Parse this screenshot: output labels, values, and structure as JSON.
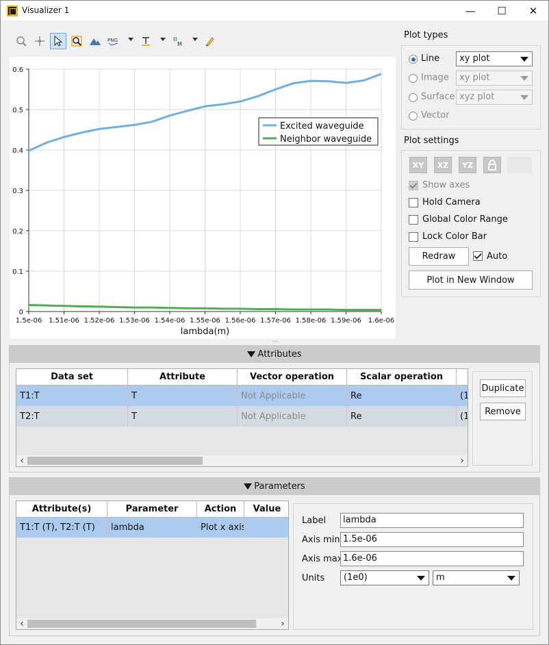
{
  "window": {
    "title": "Visualizer 1"
  },
  "toolbar": {
    "png_label": "PNG"
  },
  "plot_types": {
    "title": "Plot types",
    "options": [
      {
        "label": "Line",
        "combo": "xy plot",
        "selected": true
      },
      {
        "label": "Image",
        "combo": "xy plot",
        "selected": false
      },
      {
        "label": "Surface",
        "combo": "xyz plot",
        "selected": false
      },
      {
        "label": "Vector",
        "selected": false
      }
    ]
  },
  "plot_settings": {
    "title": "Plot settings",
    "axis_buttons": [
      "XY",
      "XZ",
      "YZ"
    ],
    "show_axes": "Show axes",
    "hold_camera": "Hold Camera",
    "global_color_range": "Global Color Range",
    "lock_color_bar": "Lock Color Bar",
    "redraw": "Redraw",
    "auto": "Auto",
    "new_window": "Plot in New Window"
  },
  "attributes": {
    "title": "Attributes",
    "headers": [
      "Data set",
      "Attribute",
      "Vector operation",
      "Scalar operation"
    ],
    "rows": [
      [
        "T1:T",
        "T",
        "Not Applicable",
        "Re",
        "(1"
      ],
      [
        "T2:T",
        "T",
        "Not Applicable",
        "Re",
        "(1"
      ]
    ],
    "duplicate": "Duplicate",
    "remove": "Remove"
  },
  "parameters": {
    "title": "Parameters",
    "headers": [
      "Attribute(s)",
      "Parameter",
      "Action",
      "Value"
    ],
    "rows": [
      [
        "T1:T (T), T2:T (T)",
        "lambda",
        "Plot x axis",
        ""
      ]
    ],
    "label_label": "Label",
    "label_value": "lambda",
    "axis_min_label": "Axis min",
    "axis_min_value": "1.5e-06",
    "axis_max_label": "Axis max",
    "axis_max_value": "1.6e-06",
    "units_label": "Units",
    "units_scale": "(1e0)",
    "units_value": "m"
  },
  "colors": {
    "series1": "#6ab0e8",
    "series2": "#4caf50",
    "selection": "#aacbee"
  },
  "chart_data": {
    "type": "line",
    "xlabel": "lambda(m)",
    "ylabel": "",
    "xlim": [
      1.5e-06,
      1.6e-06
    ],
    "ylim": [
      0,
      0.6
    ],
    "grid": true,
    "legend_position": "top-right",
    "x_tick_labels": [
      "1.5e-06",
      "1.51e-06",
      "1.52e-06",
      "1.53e-06",
      "1.54e-06",
      "1.55e-06",
      "1.56e-06",
      "1.57e-06",
      "1.58e-06",
      "1.59e-06",
      "1.6e-06"
    ],
    "y_tick_labels": [
      "0",
      "0.1",
      "0.2",
      "0.3",
      "0.4",
      "0.5",
      "0.6"
    ],
    "x": [
      1.5e-06,
      1.505e-06,
      1.51e-06,
      1.515e-06,
      1.52e-06,
      1.525e-06,
      1.53e-06,
      1.535e-06,
      1.54e-06,
      1.545e-06,
      1.55e-06,
      1.555e-06,
      1.56e-06,
      1.565e-06,
      1.57e-06,
      1.575e-06,
      1.58e-06,
      1.585e-06,
      1.59e-06,
      1.595e-06,
      1.6e-06
    ],
    "series": [
      {
        "name": "Excited waveguide",
        "color": "#6ab0e8",
        "values": [
          0.398,
          0.418,
          0.432,
          0.443,
          0.452,
          0.457,
          0.462,
          0.47,
          0.485,
          0.497,
          0.508,
          0.513,
          0.52,
          0.533,
          0.55,
          0.565,
          0.571,
          0.57,
          0.566,
          0.572,
          0.588
        ]
      },
      {
        "name": "Neighbor waveguide",
        "color": "#4caf50",
        "values": [
          0.016,
          0.015,
          0.014,
          0.013,
          0.012,
          0.011,
          0.01,
          0.01,
          0.009,
          0.008,
          0.008,
          0.007,
          0.007,
          0.006,
          0.006,
          0.005,
          0.005,
          0.005,
          0.004,
          0.004,
          0.004
        ]
      }
    ]
  }
}
